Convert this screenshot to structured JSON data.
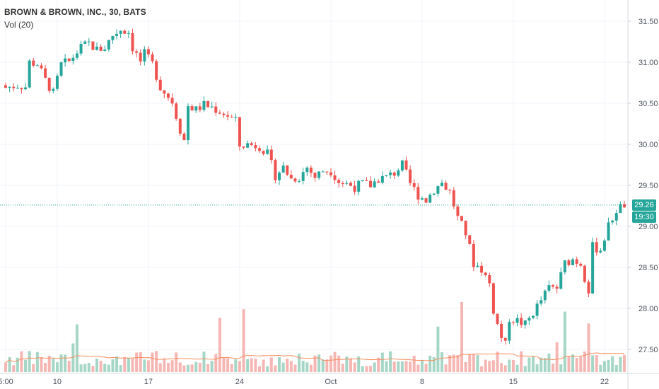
{
  "legend": {
    "title": "BROWN & BROWN, INC., 30, BATS",
    "volume": "Vol (20)"
  },
  "price_label": {
    "value": "29.26",
    "countdown": "19:30"
  },
  "colors": {
    "up": "#26a69a",
    "down": "#ef5350",
    "up_volume": "#a5d6c6",
    "down_volume": "#f6b7b4",
    "volume_ma": "#f68d5c",
    "grid": "#f0f3fa",
    "last_price_line": "#26a69a",
    "axis_text": "#4c525e"
  },
  "chart_data": {
    "type": "candlestick",
    "title": "BROWN & BROWN, INC., 30, BATS",
    "y_axis": {
      "side": "right",
      "ticks": [
        "27.50",
        "28.00",
        "28.50",
        "29.00",
        "29.50",
        "30.00",
        "30.50",
        "31.00",
        "31.50"
      ],
      "range": [
        27.2,
        31.65
      ]
    },
    "x_axis": {
      "ticks": [
        "5:00",
        "10",
        "17",
        "24",
        "Oct",
        "8",
        "15",
        "22"
      ],
      "tick_bar_index": [
        0,
        13,
        36,
        59,
        82,
        105,
        128,
        151
      ]
    },
    "grid": true,
    "last_price": 29.26,
    "close_path": [
      [
        0,
        30.69
      ],
      [
        3,
        30.72
      ],
      [
        5,
        30.7
      ],
      [
        6,
        31.0
      ],
      [
        8,
        30.98
      ],
      [
        10,
        30.78
      ],
      [
        12,
        30.62
      ],
      [
        14,
        30.97
      ],
      [
        16,
        31.01
      ],
      [
        19,
        31.18
      ],
      [
        21,
        31.23
      ],
      [
        23,
        31.15
      ],
      [
        25,
        31.18
      ],
      [
        27,
        31.33
      ],
      [
        29,
        31.4
      ],
      [
        31,
        31.37
      ],
      [
        32,
        31.18
      ],
      [
        34,
        31.01
      ],
      [
        35,
        31.1
      ],
      [
        37,
        30.98
      ],
      [
        39,
        30.7
      ],
      [
        42,
        30.52
      ],
      [
        44,
        30.18
      ],
      [
        45,
        30.05
      ],
      [
        46,
        30.47
      ],
      [
        48,
        30.42
      ],
      [
        50,
        30.48
      ],
      [
        52,
        30.45
      ],
      [
        54,
        30.4
      ],
      [
        56,
        30.35
      ],
      [
        58,
        30.28
      ],
      [
        59,
        29.98
      ],
      [
        61,
        30.0
      ],
      [
        64,
        29.98
      ],
      [
        66,
        29.88
      ],
      [
        68,
        29.62
      ],
      [
        70,
        29.72
      ],
      [
        72,
        29.58
      ],
      [
        74,
        29.6
      ],
      [
        76,
        29.72
      ],
      [
        78,
        29.6
      ],
      [
        80,
        29.68
      ],
      [
        82,
        29.68
      ],
      [
        84,
        29.55
      ],
      [
        86,
        29.52
      ],
      [
        88,
        29.48
      ],
      [
        90,
        29.52
      ],
      [
        92,
        29.5
      ],
      [
        94,
        29.58
      ],
      [
        96,
        29.6
      ],
      [
        98,
        29.65
      ],
      [
        100,
        29.75
      ],
      [
        102,
        29.52
      ],
      [
        104,
        29.38
      ],
      [
        106,
        29.32
      ],
      [
        108,
        29.45
      ],
      [
        110,
        29.53
      ],
      [
        112,
        29.42
      ],
      [
        114,
        29.1
      ],
      [
        116,
        28.92
      ],
      [
        118,
        28.55
      ],
      [
        120,
        28.48
      ],
      [
        122,
        28.3
      ],
      [
        123,
        27.98
      ],
      [
        124,
        27.8
      ],
      [
        125,
        27.65
      ],
      [
        126,
        27.55
      ],
      [
        127,
        27.88
      ],
      [
        129,
        27.85
      ],
      [
        131,
        27.8
      ],
      [
        133,
        27.95
      ],
      [
        135,
        28.1
      ],
      [
        137,
        28.25
      ],
      [
        139,
        28.25
      ],
      [
        141,
        28.55
      ],
      [
        143,
        28.6
      ],
      [
        145,
        28.55
      ],
      [
        146,
        28.38
      ],
      [
        147,
        28.22
      ],
      [
        148,
        28.75
      ],
      [
        150,
        28.72
      ],
      [
        152,
        29.0
      ],
      [
        154,
        29.2
      ],
      [
        156,
        29.26
      ]
    ],
    "volume_note": "Vol (20) histogram with 20-period moving average (orange line)"
  }
}
